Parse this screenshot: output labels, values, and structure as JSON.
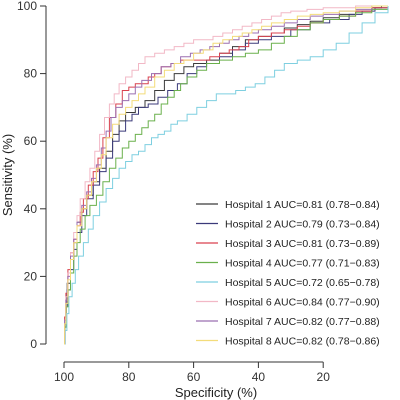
{
  "chart_data": {
    "type": "line",
    "title": "",
    "xlabel": "Specificity (%)",
    "ylabel": "Sensitivity (%)",
    "xlim": [
      100,
      0
    ],
    "ylim": [
      0,
      100
    ],
    "x_reversed": true,
    "xticks": [
      100,
      80,
      60,
      40,
      20
    ],
    "yticks": [
      0,
      20,
      40,
      60,
      80,
      100
    ],
    "grid": false,
    "legend_position": "bottom-right",
    "series": [
      {
        "name": "Hospital 1 AUC=0.81 (0.78−0.84)",
        "color": "#3a3a3a",
        "points": [
          [
            100,
            0
          ],
          [
            99.8,
            6
          ],
          [
            99.4,
            12
          ],
          [
            99,
            18
          ],
          [
            98,
            25
          ],
          [
            97,
            30
          ],
          [
            96,
            36
          ],
          [
            94.5,
            40
          ],
          [
            93,
            44
          ],
          [
            91,
            48
          ],
          [
            89,
            52
          ],
          [
            87,
            57
          ],
          [
            85,
            62
          ],
          [
            83,
            66
          ],
          [
            81,
            68.5
          ],
          [
            78,
            70
          ],
          [
            75,
            72
          ],
          [
            72,
            75
          ],
          [
            69,
            78
          ],
          [
            66,
            80
          ],
          [
            63,
            82
          ],
          [
            60,
            83
          ],
          [
            56,
            84
          ],
          [
            52,
            86
          ],
          [
            48,
            88
          ],
          [
            44,
            90
          ],
          [
            40,
            91
          ],
          [
            36,
            92
          ],
          [
            32,
            93.5
          ],
          [
            28,
            94.5
          ],
          [
            24,
            95.5
          ],
          [
            20,
            96.5
          ],
          [
            15,
            97.5
          ],
          [
            10,
            98.5
          ],
          [
            5,
            99.5
          ],
          [
            2,
            100
          ],
          [
            0,
            100
          ]
        ]
      },
      {
        "name": "Hospital 2 AUC=0.79 (0.73−0.84)",
        "color": "#3b3a7a",
        "points": [
          [
            100,
            0
          ],
          [
            99.7,
            5
          ],
          [
            99.3,
            11
          ],
          [
            99,
            16
          ],
          [
            98,
            22
          ],
          [
            97,
            28
          ],
          [
            96,
            33
          ],
          [
            94.5,
            38
          ],
          [
            93,
            43
          ],
          [
            91,
            47
          ],
          [
            89,
            51
          ],
          [
            87,
            55
          ],
          [
            85,
            60
          ],
          [
            83,
            63
          ],
          [
            81,
            66
          ],
          [
            79,
            68
          ],
          [
            77,
            70
          ],
          [
            74,
            71
          ],
          [
            71,
            73
          ],
          [
            68,
            75
          ],
          [
            65,
            77
          ],
          [
            62,
            80
          ],
          [
            59,
            82
          ],
          [
            56,
            83
          ],
          [
            52,
            85
          ],
          [
            48,
            87
          ],
          [
            44,
            89
          ],
          [
            40,
            90
          ],
          [
            36,
            91
          ],
          [
            30,
            93
          ],
          [
            24,
            95
          ],
          [
            18,
            96
          ],
          [
            12,
            97.5
          ],
          [
            8,
            98.5
          ],
          [
            4,
            99.5
          ],
          [
            0,
            100
          ]
        ]
      },
      {
        "name": "Hospital 3 AUC=0.81 (0.73−0.89)",
        "color": "#d9424f",
        "points": [
          [
            100,
            0
          ],
          [
            99.8,
            8
          ],
          [
            99.4,
            15
          ],
          [
            98.8,
            22
          ],
          [
            98,
            27
          ],
          [
            97,
            31
          ],
          [
            96,
            35
          ],
          [
            95,
            39
          ],
          [
            94,
            43
          ],
          [
            92.5,
            47
          ],
          [
            91,
            51
          ],
          [
            89.5,
            55
          ],
          [
            88,
            61
          ],
          [
            86,
            67
          ],
          [
            84,
            71
          ],
          [
            82,
            75
          ],
          [
            80,
            76
          ],
          [
            78,
            77
          ],
          [
            76,
            77
          ],
          [
            74,
            79
          ],
          [
            72,
            80
          ],
          [
            70,
            82
          ],
          [
            67,
            83
          ],
          [
            64,
            84
          ],
          [
            61,
            84
          ],
          [
            58,
            84
          ],
          [
            55,
            85
          ],
          [
            52,
            86
          ],
          [
            49,
            87
          ],
          [
            46,
            88
          ],
          [
            43,
            90
          ],
          [
            40,
            91
          ],
          [
            36,
            92
          ],
          [
            32,
            93
          ],
          [
            28,
            94
          ],
          [
            24,
            95
          ],
          [
            20,
            96
          ],
          [
            15,
            97
          ],
          [
            10,
            98.5
          ],
          [
            5,
            99.5
          ],
          [
            0,
            100
          ]
        ]
      },
      {
        "name": "Hospital 4 AUC=0.77 (0.71−0.83)",
        "color": "#6ab04c",
        "points": [
          [
            100,
            0
          ],
          [
            99.7,
            5
          ],
          [
            99.3,
            11
          ],
          [
            98.7,
            16
          ],
          [
            98,
            21
          ],
          [
            97,
            26
          ],
          [
            96,
            30
          ],
          [
            95,
            34
          ],
          [
            93.5,
            38
          ],
          [
            92,
            41
          ],
          [
            90,
            44
          ],
          [
            88,
            48
          ],
          [
            86,
            52
          ],
          [
            84,
            55
          ],
          [
            82,
            58
          ],
          [
            80,
            60
          ],
          [
            78,
            62
          ],
          [
            76,
            64
          ],
          [
            74,
            66
          ],
          [
            72,
            68
          ],
          [
            70,
            71
          ],
          [
            68,
            73
          ],
          [
            66,
            75
          ],
          [
            64,
            77
          ],
          [
            62,
            79
          ],
          [
            59,
            81
          ],
          [
            56,
            83
          ],
          [
            52,
            84
          ],
          [
            48,
            85
          ],
          [
            44,
            86
          ],
          [
            40,
            87
          ],
          [
            36,
            89
          ],
          [
            32,
            91
          ],
          [
            28,
            93
          ],
          [
            24,
            95
          ],
          [
            20,
            96
          ],
          [
            15,
            97
          ],
          [
            10,
            98
          ],
          [
            5,
            99
          ],
          [
            0,
            100
          ]
        ]
      },
      {
        "name": "Hospital 5 AUC=0.72 (0.65−0.78)",
        "color": "#7ecfe0",
        "points": [
          [
            100,
            0
          ],
          [
            99.6,
            4
          ],
          [
            99.1,
            9
          ],
          [
            98.5,
            14
          ],
          [
            97.5,
            18
          ],
          [
            96.5,
            22
          ],
          [
            95.5,
            26
          ],
          [
            94,
            30
          ],
          [
            92.5,
            34
          ],
          [
            91,
            38
          ],
          [
            89,
            42
          ],
          [
            87,
            46
          ],
          [
            85,
            49
          ],
          [
            83,
            52
          ],
          [
            81,
            54
          ],
          [
            79,
            56
          ],
          [
            77,
            57
          ],
          [
            75,
            59
          ],
          [
            73,
            61
          ],
          [
            71,
            62
          ],
          [
            69,
            63
          ],
          [
            67,
            65
          ],
          [
            65,
            66
          ],
          [
            62,
            68
          ],
          [
            59,
            70
          ],
          [
            56,
            72
          ],
          [
            53,
            74
          ],
          [
            50,
            74
          ],
          [
            47,
            75
          ],
          [
            44,
            76
          ],
          [
            41,
            77
          ],
          [
            38,
            79
          ],
          [
            35,
            81
          ],
          [
            32,
            83
          ],
          [
            28,
            84
          ],
          [
            24,
            85
          ],
          [
            20,
            87
          ],
          [
            16,
            89
          ],
          [
            12,
            92
          ],
          [
            8,
            95
          ],
          [
            4,
            98
          ],
          [
            0,
            100
          ]
        ]
      },
      {
        "name": "Hospital 6 AUC=0.84 (0.77−0.90)",
        "color": "#f2b8c6",
        "points": [
          [
            100,
            0
          ],
          [
            99.8,
            7
          ],
          [
            99.4,
            14
          ],
          [
            98.9,
            21
          ],
          [
            98,
            27
          ],
          [
            97,
            33
          ],
          [
            96,
            38
          ],
          [
            95,
            43
          ],
          [
            93.5,
            48
          ],
          [
            92,
            52
          ],
          [
            90.5,
            57
          ],
          [
            89,
            62
          ],
          [
            87.5,
            67
          ],
          [
            86,
            71
          ],
          [
            84.5,
            74
          ],
          [
            83,
            77
          ],
          [
            81,
            79
          ],
          [
            79,
            81
          ],
          [
            77,
            83
          ],
          [
            75,
            85
          ],
          [
            72,
            86
          ],
          [
            69,
            87
          ],
          [
            66,
            88
          ],
          [
            63,
            89
          ],
          [
            60,
            90
          ],
          [
            57,
            90
          ],
          [
            54,
            91
          ],
          [
            51,
            92
          ],
          [
            48,
            93
          ],
          [
            45,
            94
          ],
          [
            42,
            95
          ],
          [
            39,
            96
          ],
          [
            36,
            97
          ],
          [
            33,
            98
          ],
          [
            30,
            98.5
          ],
          [
            25,
            99
          ],
          [
            20,
            99.5
          ],
          [
            10,
            100
          ],
          [
            0,
            100
          ]
        ]
      },
      {
        "name": "Hospital 7 AUC=0.82 (0.77−0.88)",
        "color": "#9b6fb0",
        "points": [
          [
            100,
            0
          ],
          [
            99.8,
            7
          ],
          [
            99.4,
            13
          ],
          [
            98.8,
            20
          ],
          [
            98,
            26
          ],
          [
            97,
            31
          ],
          [
            96,
            36
          ],
          [
            94.5,
            41
          ],
          [
            93,
            45
          ],
          [
            91.5,
            49
          ],
          [
            90,
            53
          ],
          [
            88.5,
            58
          ],
          [
            87,
            63
          ],
          [
            85.5,
            67
          ],
          [
            84,
            70
          ],
          [
            82,
            72
          ],
          [
            80,
            74
          ],
          [
            78,
            76
          ],
          [
            76,
            78
          ],
          [
            73,
            80
          ],
          [
            70,
            82
          ],
          [
            67,
            83
          ],
          [
            64,
            85
          ],
          [
            61,
            86
          ],
          [
            58,
            87
          ],
          [
            55,
            88
          ],
          [
            52,
            89
          ],
          [
            49,
            90
          ],
          [
            46,
            91
          ],
          [
            43,
            92
          ],
          [
            40,
            93
          ],
          [
            36,
            94
          ],
          [
            32,
            95
          ],
          [
            28,
            96
          ],
          [
            24,
            97
          ],
          [
            20,
            97.5
          ],
          [
            15,
            98.5
          ],
          [
            10,
            99
          ],
          [
            5,
            100
          ],
          [
            0,
            100
          ]
        ]
      },
      {
        "name": "Hospital 8 AUC=0.82 (0.78−0.86)",
        "color": "#f3dc7a",
        "points": [
          [
            100,
            0
          ],
          [
            99.8,
            6
          ],
          [
            99.4,
            12
          ],
          [
            98.8,
            19
          ],
          [
            98,
            25
          ],
          [
            97,
            30
          ],
          [
            96,
            35
          ],
          [
            94.5,
            40
          ],
          [
            93,
            44
          ],
          [
            91.5,
            48
          ],
          [
            90,
            52
          ],
          [
            88.5,
            56
          ],
          [
            87,
            61
          ],
          [
            85,
            65
          ],
          [
            83,
            68
          ],
          [
            81,
            70
          ],
          [
            79,
            72
          ],
          [
            77,
            74
          ],
          [
            75,
            76
          ],
          [
            72,
            79
          ],
          [
            69,
            81
          ],
          [
            66,
            83
          ],
          [
            63,
            84
          ],
          [
            60,
            86
          ],
          [
            57,
            87
          ],
          [
            54,
            89
          ],
          [
            51,
            90
          ],
          [
            48,
            91
          ],
          [
            45,
            92
          ],
          [
            42,
            93
          ],
          [
            39,
            94
          ],
          [
            36,
            95
          ],
          [
            32,
            96
          ],
          [
            28,
            97
          ],
          [
            24,
            97.5
          ],
          [
            20,
            98
          ],
          [
            15,
            98.5
          ],
          [
            10,
            99.5
          ],
          [
            5,
            100
          ],
          [
            0,
            100
          ]
        ]
      }
    ]
  }
}
